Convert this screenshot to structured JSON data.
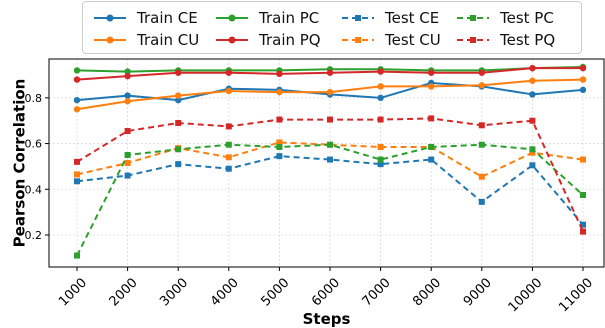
{
  "chart_data": {
    "type": "line",
    "title": "",
    "xlabel": "Steps",
    "ylabel": "Pearson Correlation",
    "categories": [
      "1000",
      "2000",
      "3000",
      "4000",
      "5000",
      "6000",
      "7000",
      "8000",
      "9000",
      "10000",
      "11000"
    ],
    "ylim": [
      0.06,
      0.97
    ],
    "yticks": [
      0.2,
      0.4,
      0.6,
      0.8
    ],
    "ytick_labels": [
      "0.2",
      "0.4",
      "0.6",
      "0.8"
    ],
    "grid": true,
    "legend_position": "top",
    "series": [
      {
        "name": "Train CE",
        "color": "#1f77b4",
        "linestyle": "solid",
        "marker": "circle",
        "values": [
          0.79,
          0.81,
          0.79,
          0.84,
          0.835,
          0.815,
          0.8,
          0.865,
          0.85,
          0.815,
          0.835
        ]
      },
      {
        "name": "Train CU",
        "color": "#ff7f0e",
        "linestyle": "solid",
        "marker": "circle",
        "values": [
          0.75,
          0.785,
          0.81,
          0.83,
          0.825,
          0.825,
          0.85,
          0.85,
          0.855,
          0.875,
          0.88
        ]
      },
      {
        "name": "Train PC",
        "color": "#2ca02c",
        "linestyle": "solid",
        "marker": "circle",
        "values": [
          0.92,
          0.915,
          0.92,
          0.92,
          0.92,
          0.925,
          0.925,
          0.92,
          0.92,
          0.93,
          0.935
        ]
      },
      {
        "name": "Train PQ",
        "color": "#d62728",
        "linestyle": "solid",
        "marker": "circle",
        "values": [
          0.88,
          0.895,
          0.91,
          0.91,
          0.905,
          0.91,
          0.915,
          0.91,
          0.91,
          0.93,
          0.93
        ]
      },
      {
        "name": "Test CE",
        "color": "#1f77b4",
        "linestyle": "dashed",
        "marker": "square",
        "values": [
          0.435,
          0.46,
          0.51,
          0.49,
          0.545,
          0.53,
          0.51,
          0.53,
          0.345,
          0.505,
          0.245
        ]
      },
      {
        "name": "Test CU",
        "color": "#ff7f0e",
        "linestyle": "dashed",
        "marker": "square",
        "values": [
          0.465,
          0.515,
          0.58,
          0.54,
          0.605,
          0.595,
          0.585,
          0.585,
          0.455,
          0.56,
          0.53
        ]
      },
      {
        "name": "Test PC",
        "color": "#2ca02c",
        "linestyle": "dashed",
        "marker": "square",
        "values": [
          0.11,
          0.55,
          0.575,
          0.595,
          0.585,
          0.595,
          0.53,
          0.585,
          0.595,
          0.575,
          0.375
        ]
      },
      {
        "name": "Test PQ",
        "color": "#d62728",
        "linestyle": "dashed",
        "marker": "square",
        "values": [
          0.52,
          0.655,
          0.69,
          0.675,
          0.705,
          0.705,
          0.705,
          0.71,
          0.68,
          0.7,
          0.215
        ]
      }
    ]
  }
}
